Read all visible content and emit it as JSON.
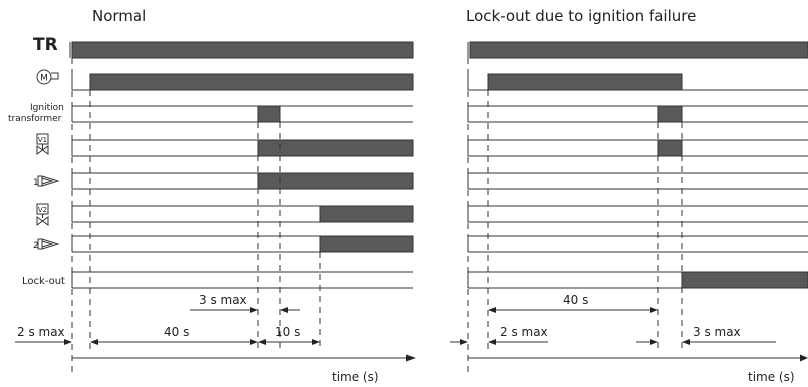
{
  "normal": {
    "title": "Normal",
    "signals": {
      "tr": "TR",
      "motor_symbol": "M",
      "ignition_line1": "Ignition",
      "ignition_line2": "transformer",
      "valve1_symbol": "V1",
      "flame1_num": "1",
      "valve2_symbol": "V2",
      "flame2_num": "2",
      "lockout": "Lock-out"
    },
    "annotations": {
      "ign_max": "3 s max",
      "prepurge": "40 s",
      "v2_delay": "10 s",
      "start_max": "2 s max",
      "axis": "time (s)"
    }
  },
  "lockout": {
    "title": "Lock-out due to ignition failure",
    "annotations": {
      "prepurge": "40 s",
      "start_max": "2 s max",
      "lock_max": "3 s max",
      "axis": "time (s)"
    }
  }
}
